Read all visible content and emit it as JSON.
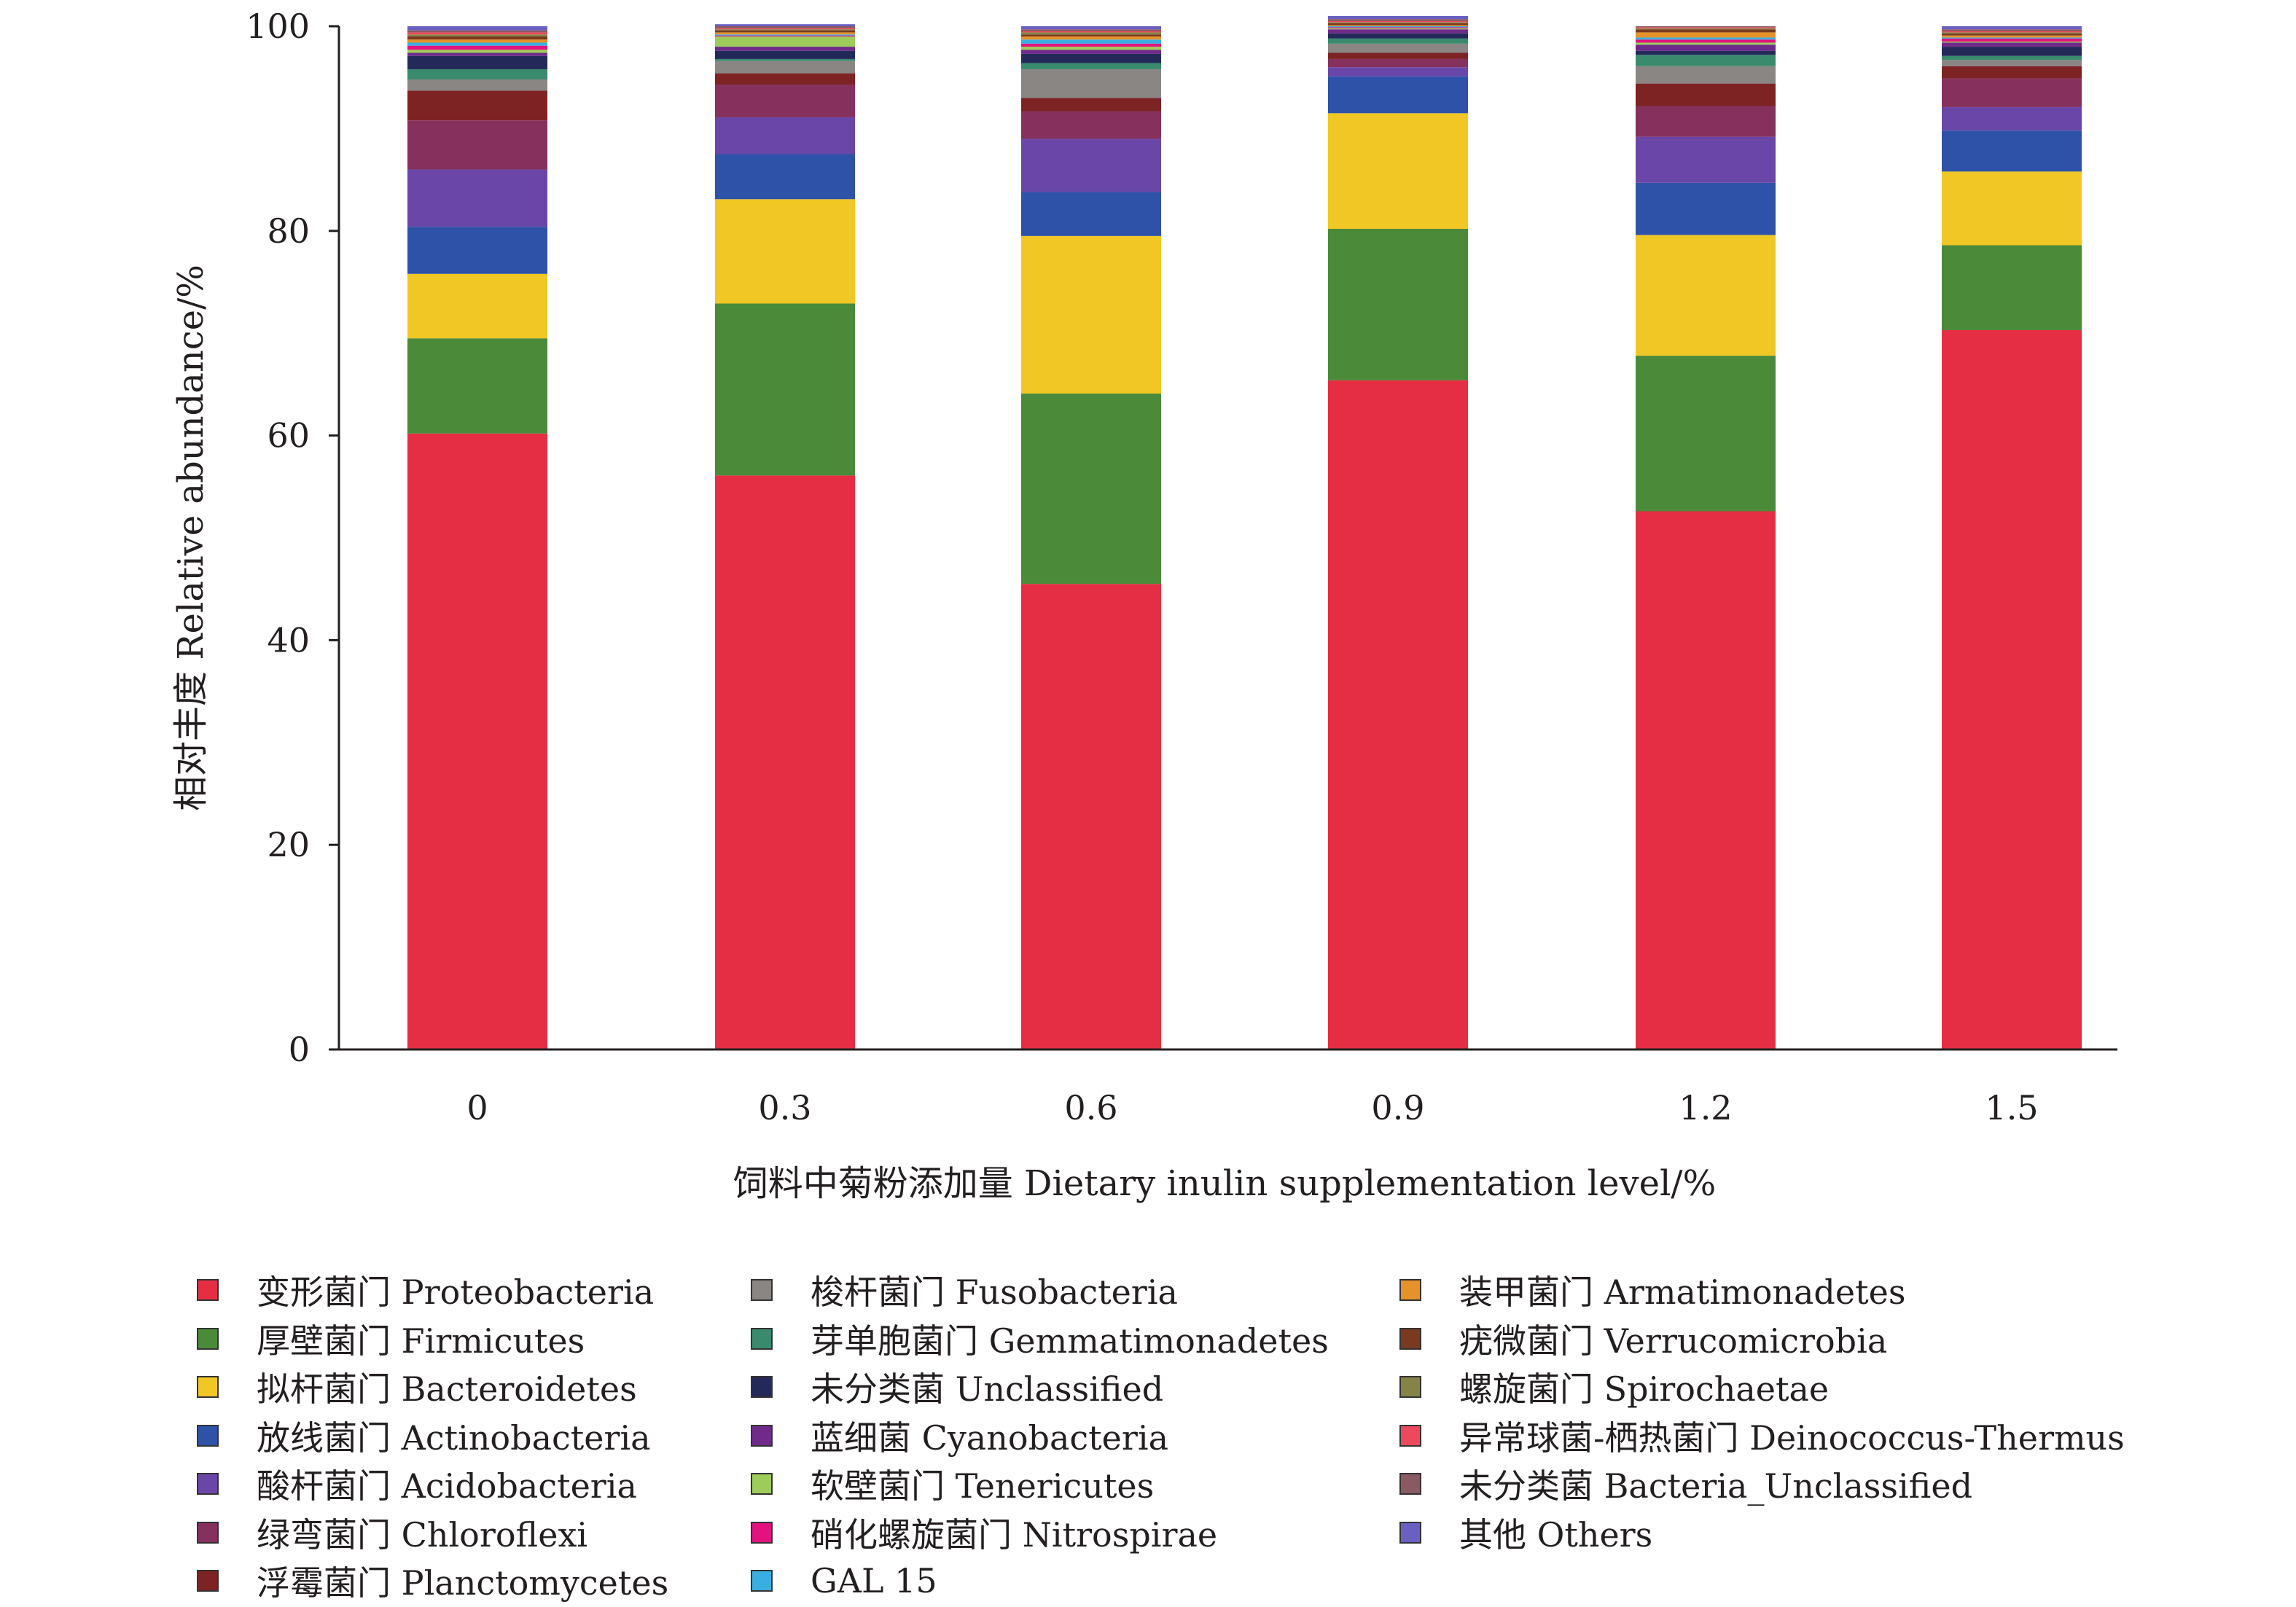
{
  "chart_data": {
    "type": "bar",
    "stacked": true,
    "xlabel": "饲料中菊粉添加量 Dietary inulin supplementation level/%",
    "ylabel": "相对丰度 Relative abundance/%",
    "ylim": [
      0,
      100
    ],
    "yticks": [
      0,
      20,
      40,
      60,
      80,
      100
    ],
    "grid": false,
    "legend_position": "bottom",
    "categories": [
      "0",
      "0.3",
      "0.6",
      "0.9",
      "1.2",
      "1.5"
    ],
    "series": [
      {
        "name": "变形菌门 Proteobacteria",
        "color": "#e52e43",
        "values": [
          60.2,
          56.1,
          45.5,
          65.4,
          52.6,
          70.3
        ]
      },
      {
        "name": "厚壁菌门 Firmicutes",
        "color": "#4a8a39",
        "values": [
          9.3,
          16.8,
          18.6,
          14.8,
          15.2,
          8.3
        ]
      },
      {
        "name": "拟杆菌门 Bacteroidetes",
        "color": "#f0c724",
        "values": [
          6.3,
          10.2,
          15.4,
          11.3,
          11.8,
          7.2
        ]
      },
      {
        "name": "放线菌门 Actinobacteria",
        "color": "#2e52a8",
        "values": [
          4.6,
          4.4,
          4.3,
          3.6,
          5.1,
          4.0
        ]
      },
      {
        "name": "酸杆菌门 Acidobacteria",
        "color": "#6a46a8",
        "values": [
          5.6,
          3.6,
          5.2,
          0.9,
          4.5,
          2.3
        ]
      },
      {
        "name": "绿弯菌门 Chloroflexi",
        "color": "#86305e",
        "values": [
          4.8,
          3.2,
          2.7,
          0.8,
          3.0,
          2.8
        ]
      },
      {
        "name": "浮霉菌门 Planctomycetes",
        "color": "#7d2324",
        "values": [
          2.9,
          1.1,
          1.3,
          0.6,
          2.2,
          1.2
        ]
      },
      {
        "name": "梭杆菌门 Fusobacteria",
        "color": "#8a8684",
        "values": [
          1.1,
          1.2,
          2.8,
          0.9,
          1.7,
          0.6
        ]
      },
      {
        "name": "芽单胞菌门 Gemmatimonadetes",
        "color": "#3a8a6e",
        "values": [
          1.0,
          0.2,
          0.6,
          0.5,
          1.1,
          0.4
        ]
      },
      {
        "name": "未分类菌 Unclassified",
        "color": "#232a5a",
        "values": [
          1.3,
          0.8,
          0.9,
          0.5,
          0.4,
          0.9
        ]
      },
      {
        "name": "蓝细菌 Cyanobacteria",
        "color": "#6f2a8a",
        "values": [
          0.3,
          0.4,
          0.4,
          0.4,
          0.6,
          0.4
        ]
      },
      {
        "name": "软壁菌门 Tenericutes",
        "color": "#9dcc5a",
        "values": [
          0.3,
          1.0,
          0.3,
          0.1,
          0.2,
          0.1
        ]
      },
      {
        "name": "硝化螺旋菌门 Nitrospirae",
        "color": "#e2137f",
        "values": [
          0.4,
          0.1,
          0.3,
          0.1,
          0.3,
          0.3
        ]
      },
      {
        "name": "GAL 15",
        "color": "#3aaee0",
        "values": [
          0.3,
          0.1,
          0.4,
          0.1,
          0.2,
          0.1
        ]
      },
      {
        "name": "装甲菌门 Armatimonadetes",
        "color": "#e5922a",
        "values": [
          0.3,
          0.2,
          0.3,
          0.1,
          0.5,
          0.2
        ]
      },
      {
        "name": "疣微菌门 Verrucomicrobia",
        "color": "#7a3a20",
        "values": [
          0.3,
          0.2,
          0.2,
          0.2,
          0.3,
          0.2
        ]
      },
      {
        "name": "螺旋菌门 Spirochaetae",
        "color": "#848447",
        "values": [
          0.2,
          0.1,
          0.2,
          0.1,
          0.1,
          0.1
        ]
      },
      {
        "name": "异常球菌-栖热菌门 Deinococcus-Thermus",
        "color": "#ec4a5c",
        "values": [
          0.2,
          0.1,
          0.1,
          0.1,
          0.1,
          0.1
        ]
      },
      {
        "name": "未分类菌 Bacteria_Unclassified",
        "color": "#8a5a62",
        "values": [
          0.2,
          0.2,
          0.2,
          0.2,
          0.1,
          0.2
        ]
      },
      {
        "name": "其他 Others",
        "color": "#6a60c2",
        "values": [
          0.4,
          0.2,
          0.3,
          0.3,
          0.0,
          0.3
        ]
      }
    ]
  }
}
